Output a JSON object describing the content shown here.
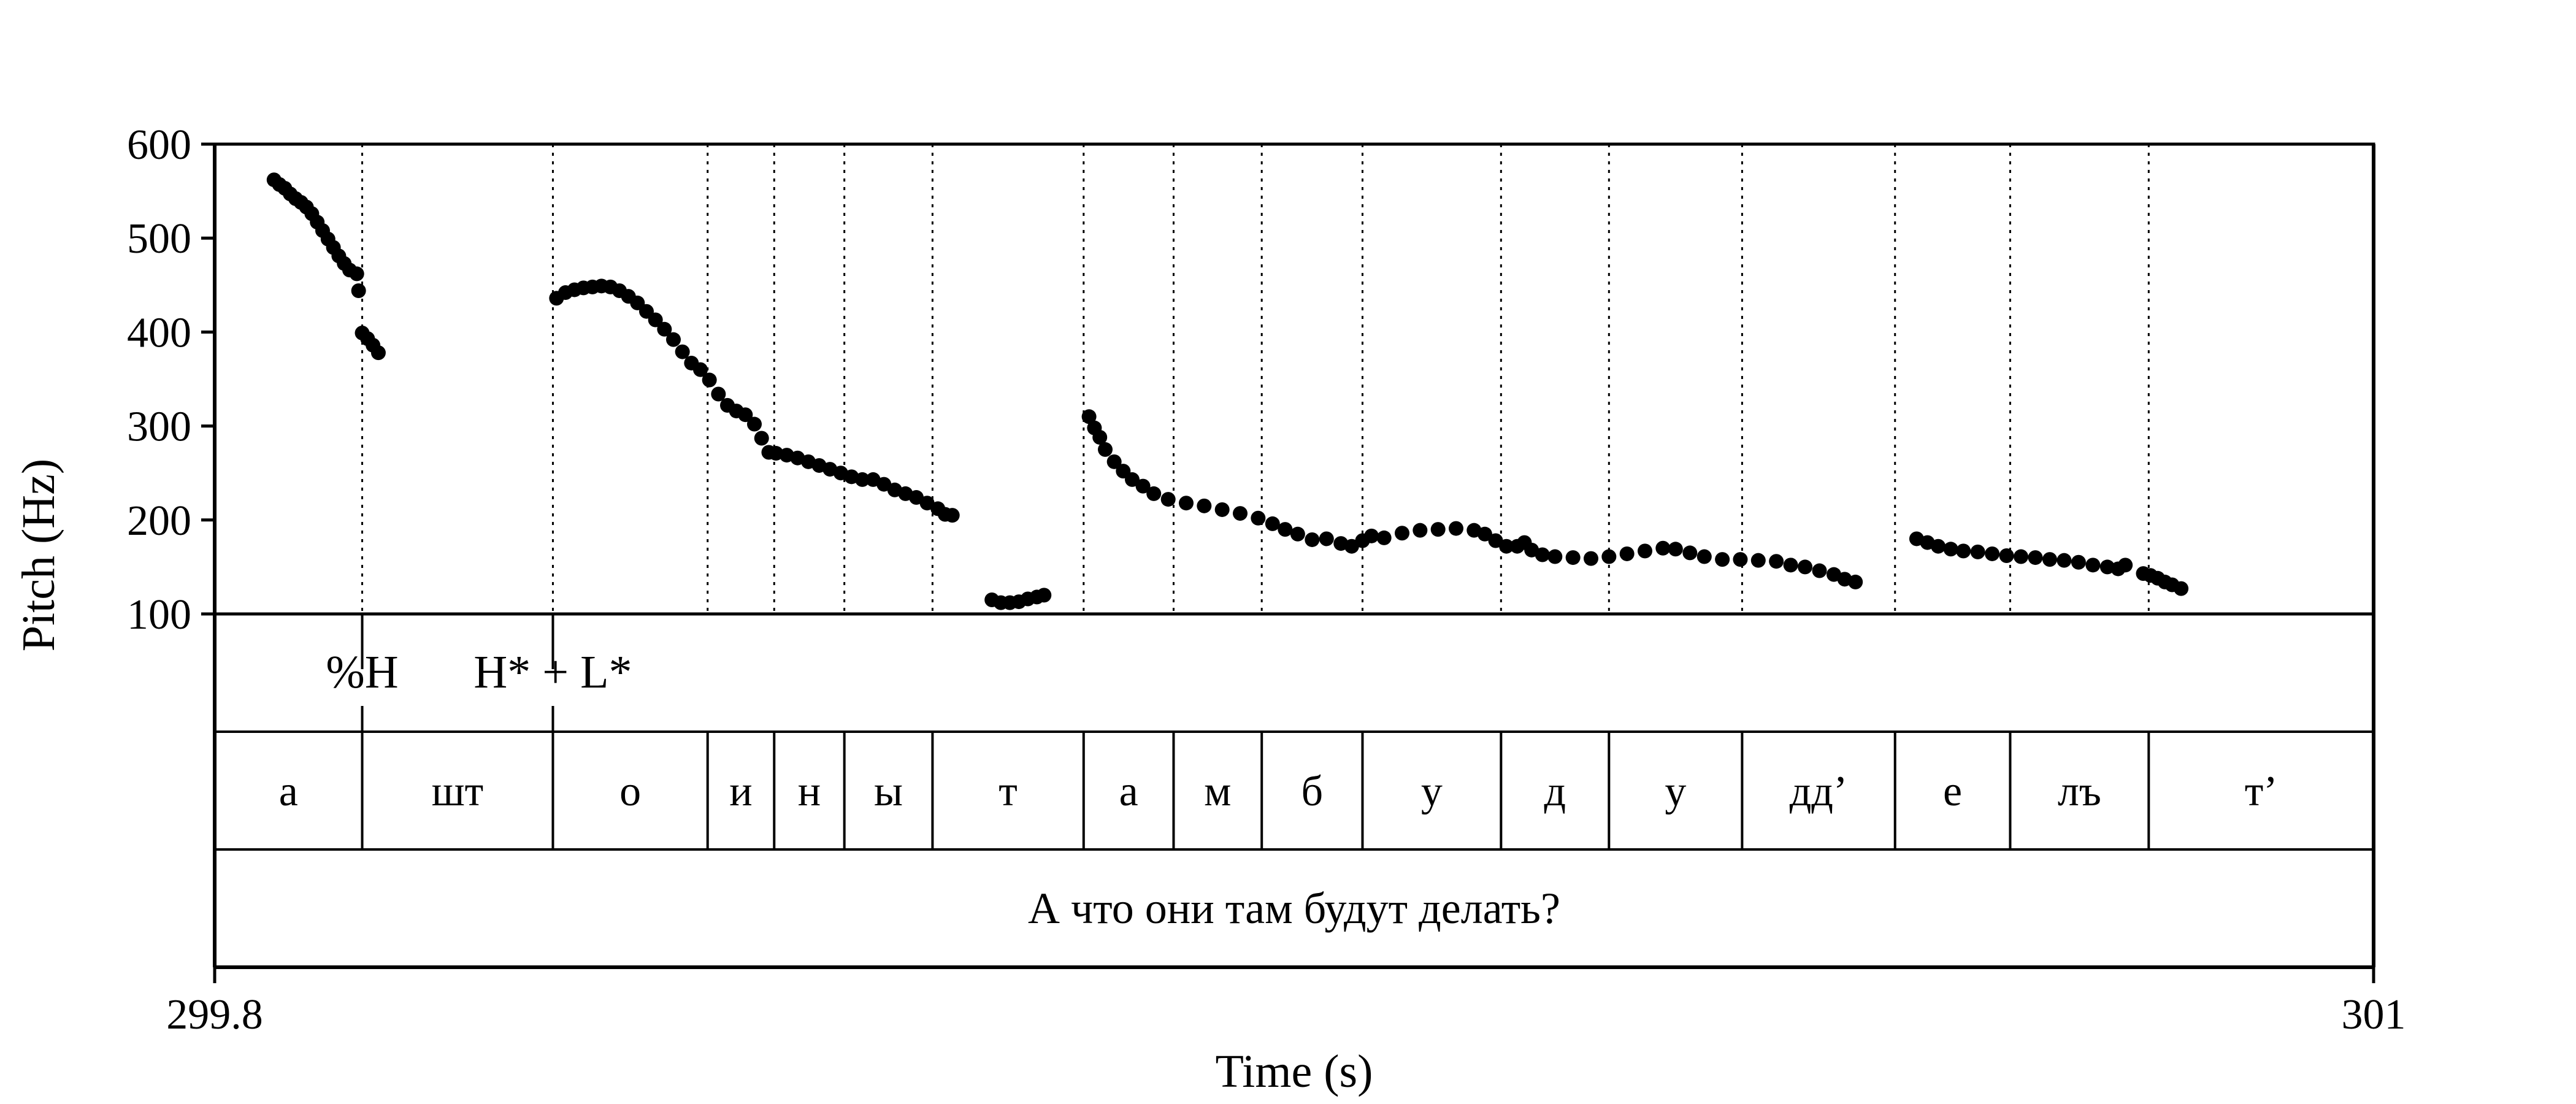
{
  "chart_data": {
    "type": "scatter",
    "title": "",
    "xlabel": "Time (s)",
    "ylabel": "Pitch (Hz)",
    "xlim": [
      299.8,
      301
    ],
    "ylim": [
      100,
      600
    ],
    "x_tick_labels": [
      {
        "value": 299.8,
        "label": "299.8"
      },
      {
        "value": 301,
        "label": "301"
      }
    ],
    "y_ticks": [
      100,
      200,
      300,
      400,
      500,
      600
    ],
    "grid": false,
    "segment_boundaries": [
      299.882,
      299.988,
      300.074,
      300.111,
      300.15,
      300.199,
      300.283,
      300.333,
      300.382,
      300.438,
      300.515,
      300.575,
      300.649,
      300.734,
      300.798,
      300.875
    ],
    "series": [
      {
        "name": "",
        "points": [
          [
            299.833,
            562
          ],
          [
            299.836,
            557
          ],
          [
            299.839,
            553
          ],
          [
            299.842,
            547
          ],
          [
            299.845,
            542
          ],
          [
            299.848,
            538
          ],
          [
            299.851,
            533
          ],
          [
            299.854,
            526
          ],
          [
            299.857,
            517
          ],
          [
            299.86,
            508
          ],
          [
            299.863,
            499
          ],
          [
            299.866,
            490
          ],
          [
            299.869,
            481
          ],
          [
            299.872,
            473
          ],
          [
            299.875,
            466
          ],
          [
            299.879,
            462
          ],
          [
            299.88,
            444
          ],
          [
            299.882,
            399
          ],
          [
            299.885,
            393
          ],
          [
            299.888,
            386
          ],
          [
            299.891,
            378
          ],
          [
            299.99,
            436
          ],
          [
            299.995,
            442
          ],
          [
            300.0,
            445
          ],
          [
            300.005,
            447
          ],
          [
            300.01,
            448
          ],
          [
            300.015,
            449
          ],
          [
            300.02,
            448
          ],
          [
            300.025,
            444
          ],
          [
            300.03,
            438
          ],
          [
            300.035,
            431
          ],
          [
            300.04,
            422
          ],
          [
            300.045,
            413
          ],
          [
            300.05,
            403
          ],
          [
            300.055,
            392
          ],
          [
            300.06,
            379
          ],
          [
            300.065,
            367
          ],
          [
            300.07,
            360
          ],
          [
            300.075,
            349
          ],
          [
            300.08,
            334
          ],
          [
            300.085,
            322
          ],
          [
            300.09,
            316
          ],
          [
            300.095,
            312
          ],
          [
            300.1,
            302
          ],
          [
            300.104,
            287
          ],
          [
            300.108,
            272
          ],
          [
            300.112,
            271
          ],
          [
            300.118,
            269
          ],
          [
            300.124,
            266
          ],
          [
            300.13,
            262
          ],
          [
            300.136,
            258
          ],
          [
            300.142,
            254
          ],
          [
            300.148,
            250
          ],
          [
            300.154,
            246
          ],
          [
            300.16,
            243
          ],
          [
            300.166,
            243
          ],
          [
            300.172,
            238
          ],
          [
            300.178,
            232
          ],
          [
            300.184,
            228
          ],
          [
            300.19,
            224
          ],
          [
            300.196,
            218
          ],
          [
            300.202,
            212
          ],
          [
            300.206,
            206
          ],
          [
            300.21,
            205
          ],
          [
            300.232,
            115
          ],
          [
            300.237,
            112
          ],
          [
            300.242,
            112
          ],
          [
            300.247,
            113
          ],
          [
            300.252,
            116
          ],
          [
            300.257,
            118
          ],
          [
            300.261,
            120
          ],
          [
            300.286,
            310
          ],
          [
            300.289,
            298
          ],
          [
            300.292,
            288
          ],
          [
            300.295,
            275
          ],
          [
            300.3,
            262
          ],
          [
            300.305,
            252
          ],
          [
            300.31,
            243
          ],
          [
            300.316,
            236
          ],
          [
            300.322,
            228
          ],
          [
            300.33,
            222
          ],
          [
            300.34,
            218
          ],
          [
            300.35,
            215
          ],
          [
            300.36,
            211
          ],
          [
            300.37,
            207
          ],
          [
            300.38,
            202
          ],
          [
            300.388,
            196
          ],
          [
            300.395,
            190
          ],
          [
            300.402,
            185
          ],
          [
            300.41,
            179
          ],
          [
            300.418,
            180
          ],
          [
            300.426,
            175
          ],
          [
            300.432,
            172
          ],
          [
            300.438,
            178
          ],
          [
            300.443,
            183
          ],
          [
            300.45,
            181
          ],
          [
            300.46,
            186
          ],
          [
            300.47,
            189
          ],
          [
            300.48,
            190
          ],
          [
            300.49,
            191
          ],
          [
            300.5,
            189
          ],
          [
            300.506,
            185
          ],
          [
            300.512,
            178
          ],
          [
            300.518,
            172
          ],
          [
            300.524,
            172
          ],
          [
            300.528,
            176
          ],
          [
            300.532,
            168
          ],
          [
            300.538,
            163
          ],
          [
            300.545,
            161
          ],
          [
            300.555,
            160
          ],
          [
            300.565,
            159
          ],
          [
            300.575,
            161
          ],
          [
            300.585,
            164
          ],
          [
            300.595,
            167
          ],
          [
            300.605,
            170
          ],
          [
            300.612,
            169
          ],
          [
            300.62,
            165
          ],
          [
            300.628,
            161
          ],
          [
            300.638,
            158
          ],
          [
            300.648,
            158
          ],
          [
            300.658,
            157
          ],
          [
            300.668,
            156
          ],
          [
            300.676,
            152
          ],
          [
            300.684,
            150
          ],
          [
            300.692,
            146
          ],
          [
            300.7,
            142
          ],
          [
            300.706,
            137
          ],
          [
            300.712,
            134
          ],
          [
            300.746,
            180
          ],
          [
            300.752,
            176
          ],
          [
            300.758,
            172
          ],
          [
            300.765,
            169
          ],
          [
            300.772,
            167
          ],
          [
            300.78,
            166
          ],
          [
            300.788,
            164
          ],
          [
            300.796,
            162
          ],
          [
            300.804,
            161
          ],
          [
            300.812,
            160
          ],
          [
            300.82,
            158
          ],
          [
            300.828,
            157
          ],
          [
            300.836,
            155
          ],
          [
            300.844,
            152
          ],
          [
            300.852,
            150
          ],
          [
            300.858,
            148
          ],
          [
            300.862,
            152
          ],
          [
            300.872,
            143
          ],
          [
            300.876,
            141
          ],
          [
            300.88,
            138
          ],
          [
            300.884,
            134
          ],
          [
            300.888,
            131
          ],
          [
            300.893,
            127
          ]
        ]
      }
    ],
    "tone_tier": [
      {
        "time": 299.882,
        "label": "%H"
      },
      {
        "time": 299.988,
        "label": "H* + L*"
      }
    ],
    "segment_tier": [
      {
        "start": 299.8,
        "end": 299.882,
        "label": "а"
      },
      {
        "start": 299.882,
        "end": 299.988,
        "label": "шт"
      },
      {
        "start": 299.988,
        "end": 300.074,
        "label": "о"
      },
      {
        "start": 300.074,
        "end": 300.111,
        "label": "и"
      },
      {
        "start": 300.111,
        "end": 300.15,
        "label": "н"
      },
      {
        "start": 300.15,
        "end": 300.199,
        "label": "ы"
      },
      {
        "start": 300.199,
        "end": 300.283,
        "label": "т"
      },
      {
        "start": 300.283,
        "end": 300.333,
        "label": "а"
      },
      {
        "start": 300.333,
        "end": 300.382,
        "label": "м"
      },
      {
        "start": 300.382,
        "end": 300.438,
        "label": "б"
      },
      {
        "start": 300.438,
        "end": 300.515,
        "label": "у"
      },
      {
        "start": 300.515,
        "end": 300.575,
        "label": "д"
      },
      {
        "start": 300.575,
        "end": 300.649,
        "label": "у"
      },
      {
        "start": 300.649,
        "end": 300.734,
        "label": "дд’"
      },
      {
        "start": 300.734,
        "end": 300.798,
        "label": "е"
      },
      {
        "start": 300.798,
        "end": 300.875,
        "label": "лъ"
      },
      {
        "start": 300.875,
        "end": 301,
        "label": "т’"
      }
    ],
    "sentence_tier": [
      {
        "start": 299.8,
        "end": 301,
        "label": "А что они там будут делать?"
      }
    ]
  }
}
